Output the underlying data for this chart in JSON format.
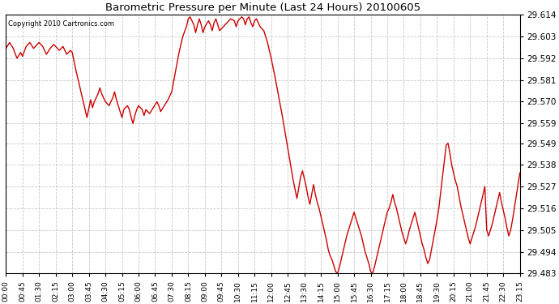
{
  "title": "Barometric Pressure per Minute (Last 24 Hours) 20100605",
  "copyright": "Copyright 2010 Cartronics.com",
  "line_color": "#cc0000",
  "background_color": "#ffffff",
  "grid_color": "#bbbbbb",
  "yticks": [
    29.483,
    29.494,
    29.505,
    29.516,
    29.527,
    29.538,
    29.549,
    29.559,
    29.57,
    29.581,
    29.592,
    29.603,
    29.614
  ],
  "ylim": [
    29.483,
    29.614
  ],
  "xtick_labels": [
    "00:00",
    "00:45",
    "01:30",
    "02:15",
    "03:00",
    "03:45",
    "04:30",
    "05:15",
    "06:00",
    "06:45",
    "07:30",
    "08:15",
    "09:00",
    "09:45",
    "10:30",
    "11:15",
    "12:00",
    "12:45",
    "13:30",
    "14:15",
    "15:00",
    "15:45",
    "16:30",
    "17:15",
    "18:00",
    "18:45",
    "19:30",
    "20:15",
    "21:00",
    "21:45",
    "22:30",
    "23:15"
  ],
  "x_values": [
    0,
    45,
    90,
    135,
    180,
    225,
    270,
    315,
    360,
    405,
    450,
    495,
    540,
    585,
    630,
    675,
    720,
    765,
    810,
    855,
    900,
    945,
    990,
    1035,
    1080,
    1125,
    1170,
    1215,
    1260,
    1305,
    1350,
    1395
  ],
  "pressure_data": [
    [
      0,
      29.597
    ],
    [
      10,
      29.6
    ],
    [
      20,
      29.597
    ],
    [
      30,
      29.592
    ],
    [
      40,
      29.595
    ],
    [
      45,
      29.593
    ],
    [
      55,
      29.598
    ],
    [
      65,
      29.6
    ],
    [
      75,
      29.597
    ],
    [
      85,
      29.599
    ],
    [
      90,
      29.6
    ],
    [
      100,
      29.598
    ],
    [
      110,
      29.594
    ],
    [
      120,
      29.597
    ],
    [
      130,
      29.599
    ],
    [
      135,
      29.598
    ],
    [
      145,
      29.596
    ],
    [
      155,
      29.598
    ],
    [
      160,
      29.596
    ],
    [
      165,
      29.594
    ],
    [
      175,
      29.596
    ],
    [
      180,
      29.595
    ],
    [
      190,
      29.586
    ],
    [
      200,
      29.578
    ],
    [
      210,
      29.57
    ],
    [
      220,
      29.562
    ],
    [
      230,
      29.571
    ],
    [
      235,
      29.567
    ],
    [
      240,
      29.57
    ],
    [
      250,
      29.574
    ],
    [
      255,
      29.577
    ],
    [
      260,
      29.574
    ],
    [
      270,
      29.57
    ],
    [
      280,
      29.568
    ],
    [
      290,
      29.572
    ],
    [
      295,
      29.575
    ],
    [
      300,
      29.571
    ],
    [
      305,
      29.568
    ],
    [
      310,
      29.565
    ],
    [
      315,
      29.562
    ],
    [
      320,
      29.566
    ],
    [
      330,
      29.568
    ],
    [
      335,
      29.566
    ],
    [
      340,
      29.562
    ],
    [
      345,
      29.559
    ],
    [
      350,
      29.563
    ],
    [
      355,
      29.566
    ],
    [
      360,
      29.568
    ],
    [
      370,
      29.566
    ],
    [
      375,
      29.563
    ],
    [
      380,
      29.566
    ],
    [
      390,
      29.564
    ],
    [
      400,
      29.567
    ],
    [
      410,
      29.57
    ],
    [
      415,
      29.568
    ],
    [
      420,
      29.565
    ],
    [
      430,
      29.568
    ],
    [
      440,
      29.571
    ],
    [
      450,
      29.575
    ],
    [
      460,
      29.585
    ],
    [
      470,
      29.595
    ],
    [
      480,
      29.603
    ],
    [
      490,
      29.608
    ],
    [
      495,
      29.612
    ],
    [
      500,
      29.613
    ],
    [
      510,
      29.609
    ],
    [
      515,
      29.605
    ],
    [
      520,
      29.609
    ],
    [
      525,
      29.612
    ],
    [
      530,
      29.609
    ],
    [
      535,
      29.605
    ],
    [
      540,
      29.608
    ],
    [
      550,
      29.611
    ],
    [
      555,
      29.609
    ],
    [
      560,
      29.606
    ],
    [
      565,
      29.61
    ],
    [
      570,
      29.612
    ],
    [
      575,
      29.609
    ],
    [
      580,
      29.606
    ],
    [
      590,
      29.608
    ],
    [
      600,
      29.61
    ],
    [
      610,
      29.612
    ],
    [
      620,
      29.611
    ],
    [
      625,
      29.608
    ],
    [
      630,
      29.611
    ],
    [
      640,
      29.613
    ],
    [
      645,
      29.612
    ],
    [
      650,
      29.609
    ],
    [
      655,
      29.612
    ],
    [
      660,
      29.613
    ],
    [
      665,
      29.61
    ],
    [
      670,
      29.608
    ],
    [
      675,
      29.611
    ],
    [
      680,
      29.612
    ],
    [
      685,
      29.61
    ],
    [
      690,
      29.608
    ],
    [
      700,
      29.606
    ],
    [
      710,
      29.6
    ],
    [
      720,
      29.592
    ],
    [
      730,
      29.583
    ],
    [
      740,
      29.573
    ],
    [
      750,
      29.563
    ],
    [
      760,
      29.552
    ],
    [
      770,
      29.541
    ],
    [
      780,
      29.53
    ],
    [
      790,
      29.521
    ],
    [
      800,
      29.532
    ],
    [
      805,
      29.535
    ],
    [
      810,
      29.531
    ],
    [
      815,
      29.527
    ],
    [
      820,
      29.522
    ],
    [
      825,
      29.518
    ],
    [
      830,
      29.523
    ],
    [
      835,
      29.528
    ],
    [
      840,
      29.523
    ],
    [
      845,
      29.519
    ],
    [
      850,
      29.516
    ],
    [
      855,
      29.512
    ],
    [
      860,
      29.508
    ],
    [
      865,
      29.504
    ],
    [
      870,
      29.5
    ],
    [
      875,
      29.495
    ],
    [
      880,
      29.492
    ],
    [
      885,
      29.49
    ],
    [
      890,
      29.487
    ],
    [
      895,
      29.484
    ],
    [
      900,
      29.483
    ],
    [
      905,
      29.486
    ],
    [
      910,
      29.49
    ],
    [
      915,
      29.494
    ],
    [
      920,
      29.498
    ],
    [
      925,
      29.502
    ],
    [
      930,
      29.505
    ],
    [
      935,
      29.508
    ],
    [
      940,
      29.511
    ],
    [
      945,
      29.514
    ],
    [
      950,
      29.511
    ],
    [
      955,
      29.508
    ],
    [
      960,
      29.505
    ],
    [
      965,
      29.502
    ],
    [
      970,
      29.498
    ],
    [
      975,
      29.494
    ],
    [
      980,
      29.491
    ],
    [
      985,
      29.488
    ],
    [
      990,
      29.484
    ],
    [
      995,
      29.483
    ],
    [
      1000,
      29.486
    ],
    [
      1005,
      29.49
    ],
    [
      1010,
      29.494
    ],
    [
      1015,
      29.498
    ],
    [
      1020,
      29.502
    ],
    [
      1025,
      29.506
    ],
    [
      1030,
      29.51
    ],
    [
      1035,
      29.514
    ],
    [
      1040,
      29.516
    ],
    [
      1045,
      29.519
    ],
    [
      1050,
      29.523
    ],
    [
      1055,
      29.519
    ],
    [
      1060,
      29.516
    ],
    [
      1065,
      29.512
    ],
    [
      1070,
      29.508
    ],
    [
      1075,
      29.504
    ],
    [
      1080,
      29.501
    ],
    [
      1085,
      29.498
    ],
    [
      1090,
      29.501
    ],
    [
      1095,
      29.505
    ],
    [
      1100,
      29.508
    ],
    [
      1105,
      29.511
    ],
    [
      1110,
      29.514
    ],
    [
      1115,
      29.51
    ],
    [
      1120,
      29.506
    ],
    [
      1125,
      29.502
    ],
    [
      1130,
      29.498
    ],
    [
      1135,
      29.495
    ],
    [
      1140,
      29.491
    ],
    [
      1145,
      29.488
    ],
    [
      1150,
      29.49
    ],
    [
      1155,
      29.495
    ],
    [
      1160,
      29.5
    ],
    [
      1165,
      29.505
    ],
    [
      1170,
      29.51
    ],
    [
      1175,
      29.516
    ],
    [
      1180,
      29.524
    ],
    [
      1185,
      29.532
    ],
    [
      1190,
      29.54
    ],
    [
      1195,
      29.548
    ],
    [
      1200,
      29.549
    ],
    [
      1205,
      29.544
    ],
    [
      1210,
      29.538
    ],
    [
      1215,
      29.534
    ],
    [
      1220,
      29.53
    ],
    [
      1225,
      29.527
    ],
    [
      1230,
      29.522
    ],
    [
      1235,
      29.517
    ],
    [
      1240,
      29.513
    ],
    [
      1245,
      29.509
    ],
    [
      1250,
      29.505
    ],
    [
      1255,
      29.501
    ],
    [
      1260,
      29.498
    ],
    [
      1265,
      29.501
    ],
    [
      1270,
      29.504
    ],
    [
      1275,
      29.507
    ],
    [
      1280,
      29.511
    ],
    [
      1285,
      29.515
    ],
    [
      1290,
      29.519
    ],
    [
      1295,
      29.523
    ],
    [
      1300,
      29.527
    ],
    [
      1305,
      29.505
    ],
    [
      1310,
      29.502
    ],
    [
      1315,
      29.505
    ],
    [
      1320,
      29.508
    ],
    [
      1325,
      29.512
    ],
    [
      1330,
      29.516
    ],
    [
      1335,
      29.52
    ],
    [
      1340,
      29.524
    ],
    [
      1345,
      29.519
    ],
    [
      1350,
      29.515
    ],
    [
      1355,
      29.511
    ],
    [
      1360,
      29.506
    ],
    [
      1365,
      29.502
    ],
    [
      1370,
      29.505
    ],
    [
      1375,
      29.51
    ],
    [
      1380,
      29.516
    ],
    [
      1385,
      29.522
    ],
    [
      1390,
      29.528
    ],
    [
      1395,
      29.534
    ]
  ]
}
